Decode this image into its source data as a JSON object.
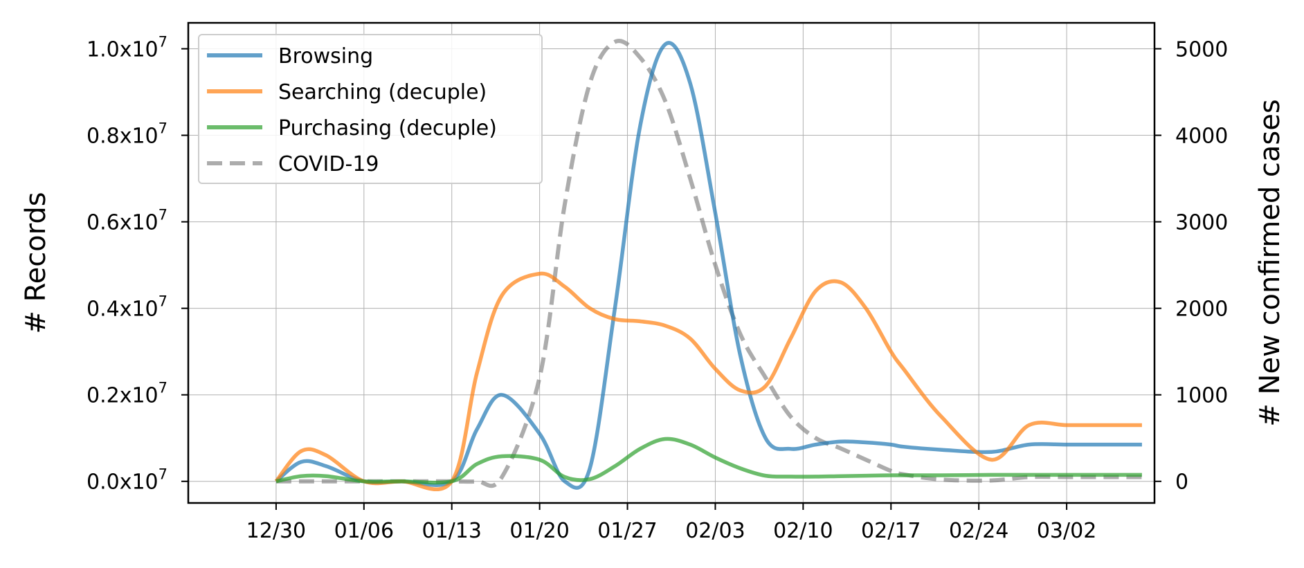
{
  "chart_data": {
    "type": "line",
    "title": "",
    "xlabel": "",
    "ylabel": "# Records",
    "y2label": "# New confirmed cases",
    "x_ticks": [
      "12/30",
      "01/06",
      "01/13",
      "01/20",
      "01/27",
      "02/03",
      "02/10",
      "02/17",
      "02/24",
      "03/02"
    ],
    "xlim_days": [
      -7,
      70
    ],
    "x_days": [
      0,
      2,
      4,
      7,
      10,
      14,
      16,
      18,
      21,
      23,
      25,
      27,
      29,
      31,
      33,
      35,
      37,
      39,
      41,
      43,
      45,
      47,
      49,
      50,
      53,
      57,
      60,
      63,
      66,
      69
    ],
    "ylim": [
      -0.05,
      1.06
    ],
    "y_ticks": [
      0.0,
      0.2,
      0.4,
      0.6,
      0.8,
      1.0
    ],
    "y_tick_labels": [
      "0.0x10",
      "0.2x10",
      "0.4x10",
      "0.6x10",
      "0.8x10",
      "1.0x10"
    ],
    "y_tick_exponent": "7",
    "y2lim": [
      -250,
      5300
    ],
    "y2_ticks": [
      0,
      1000,
      2000,
      3000,
      4000,
      5000
    ],
    "y2_tick_labels": [
      "0",
      "1000",
      "2000",
      "3000",
      "4000",
      "5000"
    ],
    "grid": true,
    "legend_position": "top-left",
    "series": [
      {
        "name": "Browsing",
        "axis": "left",
        "color": "#1f77b4",
        "style": "solid",
        "values": [
          0.0,
          0.045,
          0.035,
          0.0,
          0.0,
          0.0,
          0.12,
          0.2,
          0.11,
          0.0,
          0.03,
          0.4,
          0.82,
          1.01,
          0.92,
          0.62,
          0.29,
          0.1,
          0.075,
          0.085,
          0.092,
          0.09,
          0.085,
          0.08,
          0.073,
          0.068,
          0.085,
          0.085,
          0.085,
          0.085
        ]
      },
      {
        "name": "Searching (decuple)",
        "axis": "left",
        "color": "#ff7f0e",
        "style": "solid",
        "values": [
          0.0,
          0.07,
          0.06,
          0.0,
          0.0,
          0.0,
          0.25,
          0.43,
          0.48,
          0.45,
          0.4,
          0.375,
          0.37,
          0.36,
          0.33,
          0.26,
          0.21,
          0.22,
          0.33,
          0.44,
          0.46,
          0.4,
          0.3,
          0.26,
          0.15,
          0.05,
          0.13,
          0.13,
          0.13,
          0.13
        ]
      },
      {
        "name": "Purchasing (decuple)",
        "axis": "left",
        "color": "#2ca02c",
        "style": "solid",
        "values": [
          0.0,
          0.012,
          0.012,
          0.0,
          0.0,
          0.0,
          0.04,
          0.058,
          0.05,
          0.01,
          0.005,
          0.035,
          0.075,
          0.098,
          0.085,
          0.055,
          0.03,
          0.013,
          0.011,
          0.011,
          0.012,
          0.013,
          0.014,
          0.014,
          0.014,
          0.015,
          0.015,
          0.015,
          0.015,
          0.015
        ]
      },
      {
        "name": "COVID-19",
        "axis": "right",
        "color": "#7f7f7f",
        "style": "dashed",
        "values": [
          0,
          0,
          0,
          0,
          0,
          0,
          0,
          50,
          1200,
          3200,
          4600,
          5080,
          4900,
          4400,
          3500,
          2500,
          1700,
          1200,
          750,
          500,
          380,
          250,
          120,
          80,
          20,
          10,
          50,
          50,
          50,
          50
        ]
      }
    ]
  }
}
